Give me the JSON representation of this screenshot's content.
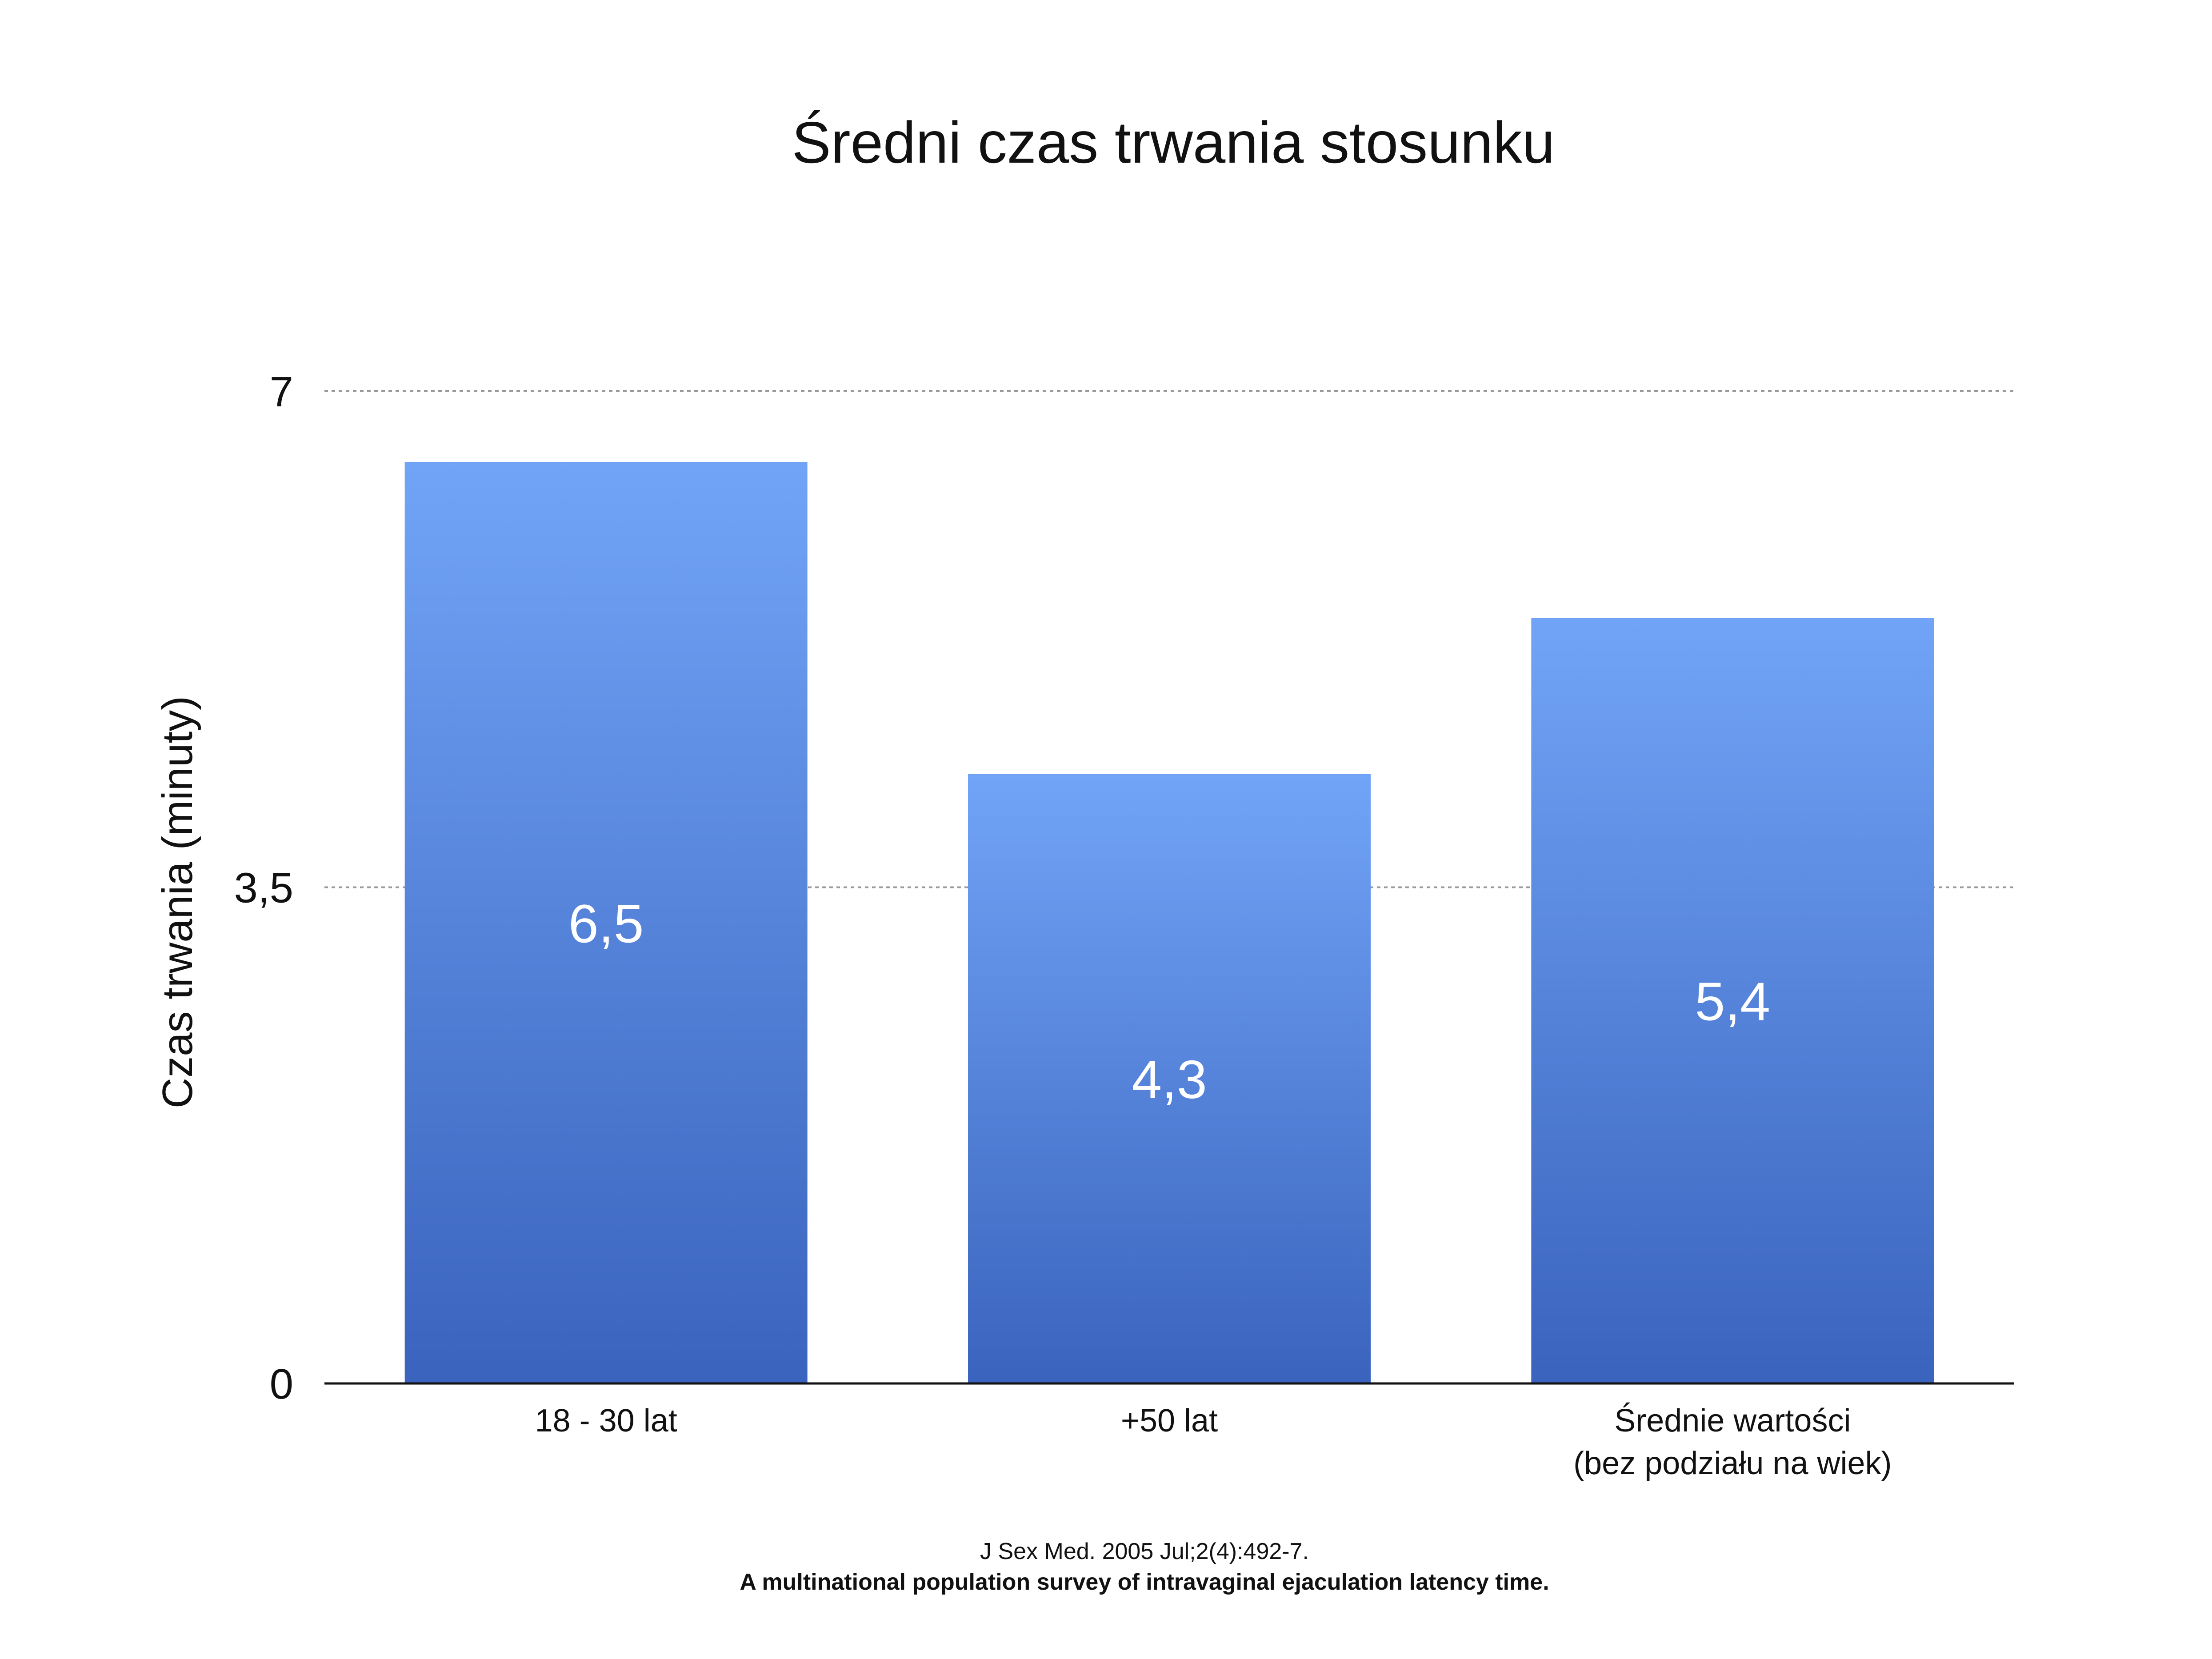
{
  "chart_data": {
    "type": "bar",
    "title": "Średni czas trwania stosunku",
    "ylabel": "Czas trwania (minuty)",
    "xlabel": "",
    "ylim": [
      0,
      7
    ],
    "yticks": [
      "0",
      "3,5",
      "7"
    ],
    "ytick_values": [
      0,
      3.5,
      7
    ],
    "grid": "horizontal dotted",
    "categories": [
      [
        "18 - 30 lat"
      ],
      [
        "+50 lat"
      ],
      [
        "Średnie wartości",
        "(bez podziału na wiek)"
      ]
    ],
    "values": [
      6.5,
      4.3,
      5.4
    ],
    "value_labels": [
      "6,5",
      "4,3",
      "5,4"
    ],
    "colors": {
      "bar_top": "#71a4f7",
      "bar_bottom": "#3a63bd",
      "grid": "#9a9a9a",
      "axis": "#111111"
    }
  },
  "source": {
    "line1": "J Sex Med. 2005 Jul;2(4):492-7.",
    "line2": "A multinational population survey of intravaginal ejaculation latency time."
  }
}
